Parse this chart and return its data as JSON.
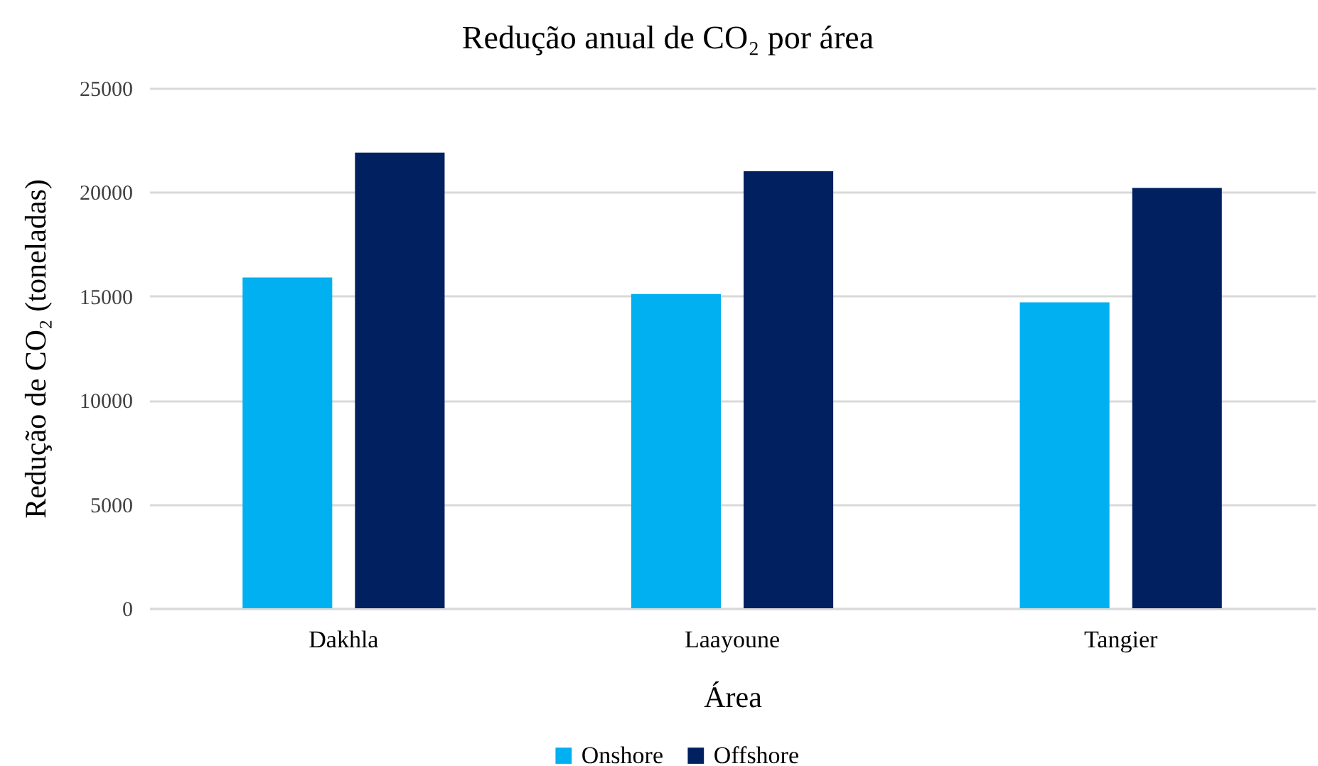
{
  "chart_data": {
    "type": "bar",
    "title": "Redução anual de CO₂ por área",
    "xlabel": "Área",
    "ylabel": "Redução de CO₂ (toneladas)",
    "categories": [
      "Dakhla",
      "Laayoune",
      "Tangier"
    ],
    "series": [
      {
        "name": "Onshore",
        "color": "#00b0f0",
        "values": [
          15900,
          15100,
          14700
        ]
      },
      {
        "name": "Offshore",
        "color": "#002060",
        "values": [
          21900,
          21000,
          20200
        ]
      }
    ],
    "ylim": [
      0,
      25000
    ],
    "yticks": [
      0,
      5000,
      10000,
      15000,
      20000,
      25000
    ],
    "grid": "y",
    "legend": "bottom"
  }
}
